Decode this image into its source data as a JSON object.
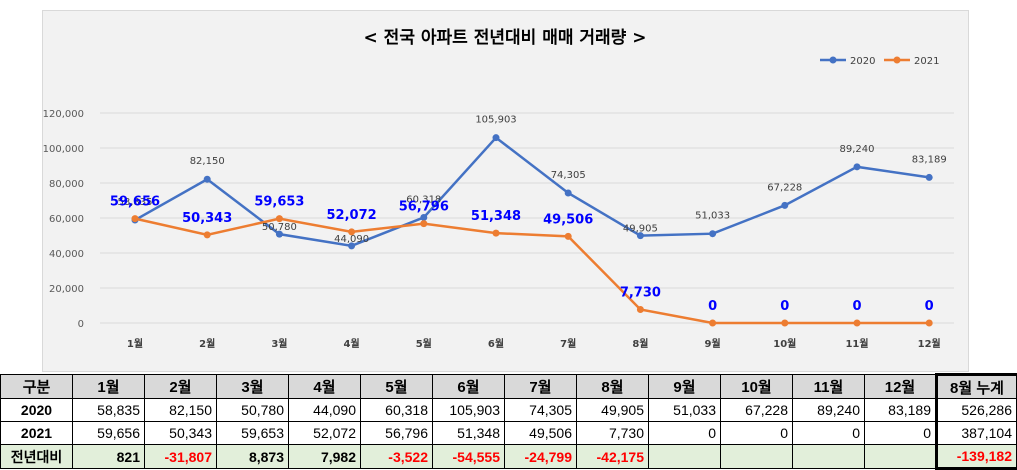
{
  "chart_data": {
    "type": "line",
    "title": "< 전국  아파트 전년대비 매매 거래량 >",
    "categories": [
      "1월",
      "2월",
      "3월",
      "4월",
      "5월",
      "6월",
      "7월",
      "8월",
      "9월",
      "10월",
      "11월",
      "12월"
    ],
    "series": [
      {
        "name": "2020",
        "color": "#4472c4",
        "values": [
          58835,
          82150,
          50780,
          44090,
          60318,
          105903,
          74305,
          49905,
          51033,
          67228,
          89240,
          83189
        ],
        "labels": [
          "58,835",
          "82,150",
          "50,780",
          "44,090",
          "60,318",
          "105,903",
          "74,305",
          "49,905",
          "51,033",
          "67,228",
          "89,240",
          "83,189"
        ]
      },
      {
        "name": "2021",
        "color": "#ed7d31",
        "values": [
          59656,
          50343,
          59653,
          52072,
          56796,
          51348,
          49506,
          7730,
          0,
          0,
          0,
          0
        ],
        "labels": [
          "59,656",
          "50,343",
          "59,653",
          "52,072",
          "56,796",
          "51,348",
          "49,506",
          "7,730",
          "0",
          "0",
          "0",
          "0"
        ]
      }
    ],
    "ylim": [
      0,
      120000
    ],
    "yticks": [
      0,
      20000,
      40000,
      60000,
      80000,
      100000,
      120000
    ],
    "ytick_labels": [
      "0",
      "20,000",
      "40,000",
      "60,000",
      "80,000",
      "100,000",
      "120,000"
    ],
    "legend": "top-right",
    "grid": true,
    "label_color_2021": "#0000ff"
  },
  "table": {
    "header": [
      "구분",
      "1월",
      "2월",
      "3월",
      "4월",
      "5월",
      "6월",
      "7월",
      "8월",
      "9월",
      "10월",
      "11월",
      "12월",
      "8월 누계"
    ],
    "rows": [
      {
        "label": "2020",
        "cells": [
          "58,835",
          "82,150",
          "50,780",
          "44,090",
          "60,318",
          "105,903",
          "74,305",
          "49,905",
          "51,033",
          "67,228",
          "89,240",
          "83,189",
          "526,286"
        ]
      },
      {
        "label": "2021",
        "cells": [
          "59,656",
          "50,343",
          "59,653",
          "52,072",
          "56,796",
          "51,348",
          "49,506",
          "7,730",
          "0",
          "0",
          "0",
          "0",
          "387,104"
        ]
      },
      {
        "label": "전년대비",
        "cells": [
          "821",
          "-31,807",
          "8,873",
          "7,982",
          "-3,522",
          "-54,555",
          "-24,799",
          "-42,175",
          "",
          "",
          "",
          "",
          "-139,182"
        ]
      }
    ]
  }
}
